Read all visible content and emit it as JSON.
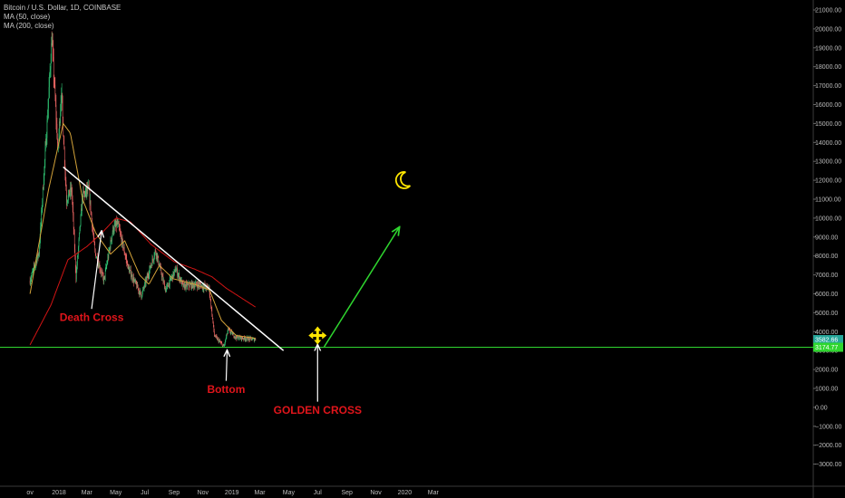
{
  "chart_data": {
    "type": "candlestick",
    "title": "Bitcoin / U.S. Dollar, 1D, COINBASE",
    "indicators": [
      {
        "label": "MA (50, close)",
        "color": "#d4a33a"
      },
      {
        "label": "MA (200, close)",
        "color": "#d11414"
      }
    ],
    "ylim": [
      -3400,
      21500
    ],
    "y_ticks": [
      "21000.00",
      "20000.00",
      "19000.00",
      "18000.00",
      "17000.00",
      "16000.00",
      "15000.00",
      "14000.00",
      "13000.00",
      "12000.00",
      "11000.00",
      "10000.00",
      "9000.00",
      "8000.00",
      "7000.00",
      "6000.00",
      "5000.00",
      "4000.00",
      "3000.00",
      "2000.00",
      "1000.00",
      "0.00",
      "−1000.00",
      "−2000.00",
      "−3000.00"
    ],
    "y_tick_values": [
      21000,
      20000,
      19000,
      18000,
      17000,
      16000,
      15000,
      14000,
      13000,
      12000,
      11000,
      10000,
      9000,
      8000,
      7000,
      6000,
      5000,
      4000,
      3000,
      2000,
      1000,
      0,
      -1000,
      -2000,
      -3000
    ],
    "x_ticks": [
      "ov",
      "2018",
      "Mar",
      "May",
      "Jul",
      "Sep",
      "Nov",
      "2019",
      "Mar",
      "May",
      "Jul",
      "Sep",
      "Nov",
      "2020",
      "Mar"
    ],
    "x_tick_dates": [
      "2017-11-01",
      "2018-01-01",
      "2018-03-01",
      "2018-05-01",
      "2018-07-01",
      "2018-09-01",
      "2018-11-01",
      "2019-01-01",
      "2019-03-01",
      "2019-05-01",
      "2019-07-01",
      "2019-09-01",
      "2019-11-01",
      "2020-01-01",
      "2020-03-01"
    ],
    "price_path": [
      [
        "2017-11-01",
        6700
      ],
      [
        "2017-11-20",
        8200
      ],
      [
        "2017-12-07",
        15000
      ],
      [
        "2017-12-17",
        19500
      ],
      [
        "2017-12-30",
        13500
      ],
      [
        "2018-01-06",
        16800
      ],
      [
        "2018-01-17",
        11000
      ],
      [
        "2018-01-28",
        11500
      ],
      [
        "2018-02-06",
        6900
      ],
      [
        "2018-02-20",
        11200
      ],
      [
        "2018-03-05",
        11500
      ],
      [
        "2018-03-18",
        8200
      ],
      [
        "2018-04-06",
        6700
      ],
      [
        "2018-04-25",
        9400
      ],
      [
        "2018-05-05",
        9700
      ],
      [
        "2018-05-28",
        7300
      ],
      [
        "2018-06-24",
        5900
      ],
      [
        "2018-07-24",
        8300
      ],
      [
        "2018-08-14",
        6200
      ],
      [
        "2018-09-05",
        7300
      ],
      [
        "2018-09-20",
        6400
      ],
      [
        "2018-10-20",
        6500
      ],
      [
        "2018-11-14",
        6300
      ],
      [
        "2018-11-25",
        3800
      ],
      [
        "2018-12-15",
        3200
      ],
      [
        "2018-12-24",
        4100
      ],
      [
        "2019-01-10",
        3700
      ],
      [
        "2019-02-20",
        3580
      ]
    ],
    "ma50_path": [
      [
        "2017-11-01",
        6000
      ],
      [
        "2017-12-10",
        11500
      ],
      [
        "2018-01-10",
        15000
      ],
      [
        "2018-01-25",
        14500
      ],
      [
        "2018-02-20",
        11000
      ],
      [
        "2018-03-20",
        9200
      ],
      [
        "2018-04-20",
        8100
      ],
      [
        "2018-05-20",
        8800
      ],
      [
        "2018-06-20",
        7000
      ],
      [
        "2018-07-10",
        6500
      ],
      [
        "2018-08-01",
        7500
      ],
      [
        "2018-08-30",
        6800
      ],
      [
        "2018-10-15",
        6500
      ],
      [
        "2018-11-15",
        6200
      ],
      [
        "2018-12-10",
        4600
      ],
      [
        "2019-01-10",
        3800
      ],
      [
        "2019-02-20",
        3650
      ]
    ],
    "ma200_path": [
      [
        "2017-11-01",
        3300
      ],
      [
        "2017-12-15",
        5400
      ],
      [
        "2018-01-20",
        7800
      ],
      [
        "2018-03-01",
        8500
      ],
      [
        "2018-04-01",
        9200
      ],
      [
        "2018-05-01",
        10000
      ],
      [
        "2018-06-01",
        9800
      ],
      [
        "2018-07-15",
        8600
      ],
      [
        "2018-09-01",
        7700
      ],
      [
        "2018-10-15",
        7300
      ],
      [
        "2018-11-20",
        6900
      ],
      [
        "2018-12-20",
        6300
      ],
      [
        "2019-02-20",
        5300
      ]
    ],
    "trendline": {
      "from": [
        "2018-01-10",
        12700
      ],
      "to": [
        "2019-04-20",
        3000
      ],
      "color": "#ffffff"
    },
    "support_line": {
      "value": 3174.77,
      "color": "#2fd62f"
    },
    "projection_arrow": {
      "from": [
        "2019-07-15",
        3200
      ],
      "to": [
        "2019-12-20",
        9500
      ],
      "color": "#2fd62f"
    },
    "price_labels": [
      {
        "text": "3582.66",
        "value": 3582.66,
        "color": "#26a69a"
      },
      {
        "text": "3174.77",
        "value": 3174.77,
        "color": "#2fd62f"
      }
    ],
    "annotations": [
      {
        "text": "Death Cross",
        "color": "#e0151b"
      },
      {
        "text": "Bottom",
        "color": "#e0151b"
      },
      {
        "text": "GOLDEN CROSS",
        "color": "#e0151b"
      }
    ],
    "arrows": [
      {
        "from": [
          "2018-03-11",
          5200
        ],
        "to": [
          "2018-04-01",
          9300
        ],
        "color": "#ffffff"
      },
      {
        "from": [
          "2018-12-20",
          1400
        ],
        "to": [
          "2018-12-22",
          3000
        ],
        "color": "#ffffff"
      },
      {
        "from": [
          "2019-07-01",
          300
        ],
        "to": [
          "2019-07-01",
          3300
        ],
        "color": "#ffffff"
      }
    ],
    "markers": [
      {
        "name": "cross-arrows-icon",
        "at": [
          "2019-07-01",
          3800
        ],
        "color": "#ffe600"
      },
      {
        "name": "crescent-moon-icon",
        "at": [
          "2019-12-30",
          12000
        ],
        "color": "#ffe600"
      }
    ],
    "grid": false
  }
}
